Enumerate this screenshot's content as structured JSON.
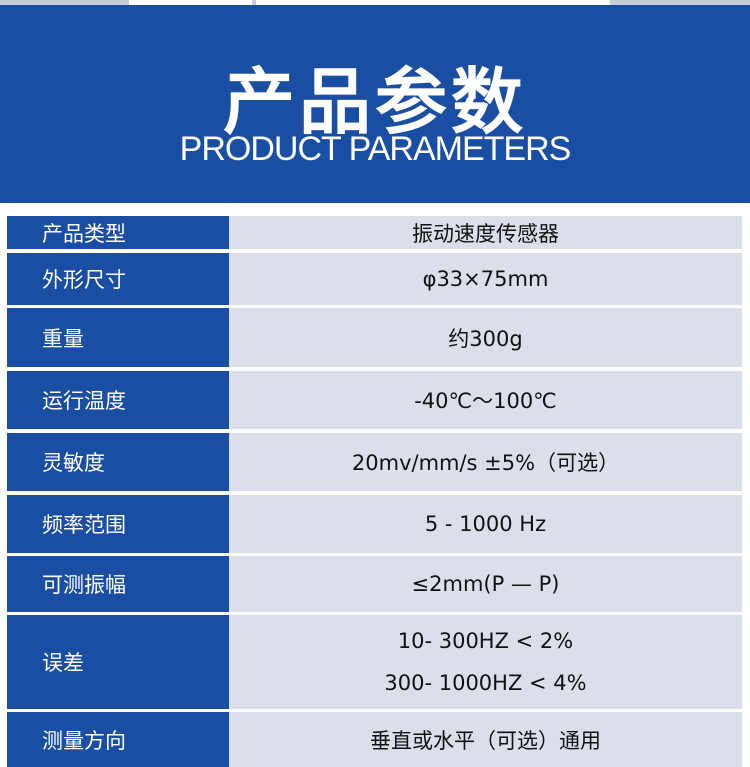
{
  "header": {
    "title": "产品参数",
    "subtitle": "PRODUCT  PARAMETERS"
  },
  "colors": {
    "blue": "#1a4ea3",
    "cell": "#dcdfea"
  },
  "rows": [
    {
      "label": "产品类型",
      "values": [
        "振动速度传感器"
      ]
    },
    {
      "label": "外形尺寸",
      "values": [
        "φ33×75mm"
      ]
    },
    {
      "label": "重量",
      "values": [
        "约300g"
      ]
    },
    {
      "label": "运行温度",
      "values": [
        "-40℃～100℃"
      ]
    },
    {
      "label": "灵敏度",
      "values": [
        "20mv/mm/s ±5%（可选）"
      ]
    },
    {
      "label": "频率范围",
      "values": [
        "5 - 1000 Hz"
      ]
    },
    {
      "label": "可测振幅",
      "values": [
        "≤2mm(P — P)"
      ]
    },
    {
      "label": "误差",
      "values": [
        "10- 300HZ < 2%",
        "300- 1000HZ < 4%"
      ]
    },
    {
      "label": "测量方向",
      "values": [
        "垂直或水平（可选）通用"
      ]
    }
  ]
}
